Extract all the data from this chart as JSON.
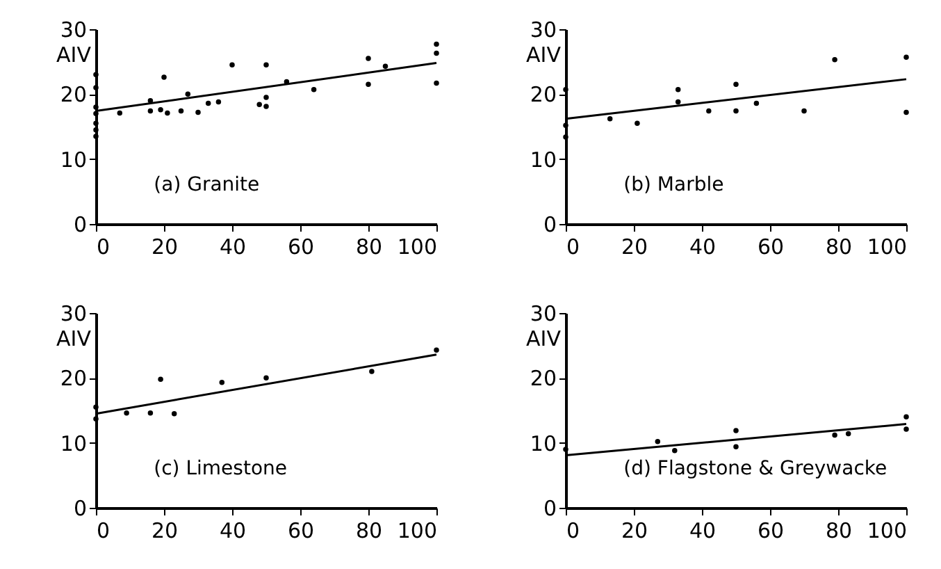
{
  "chart_data": [
    {
      "type": "scatter",
      "ylabel": "AIV",
      "annotations": [
        "(a) Granite"
      ],
      "xlim": [
        0,
        100
      ],
      "xticks": [
        0,
        20,
        40,
        60,
        80,
        100
      ],
      "ylim": [
        0,
        30
      ],
      "yticks": [
        0,
        10,
        20,
        30
      ],
      "line_style": "solid",
      "series": [
        {
          "type": "scatter",
          "marker": "circle",
          "color": "#000000",
          "x": [
            0,
            0,
            0,
            0,
            0,
            0,
            0,
            7,
            16,
            16,
            20,
            19,
            21,
            25,
            27,
            30,
            33,
            36,
            40,
            48,
            50,
            50,
            50,
            56,
            64,
            80,
            80,
            85,
            100,
            100,
            100
          ],
          "values": [
            23,
            21,
            18,
            17,
            15.5,
            14.5,
            13.5,
            17.1,
            19,
            17.4,
            22.6,
            17.6,
            17.1,
            17.4,
            20,
            17.2,
            18.6,
            18.8,
            24.5,
            18.4,
            19.5,
            18.1,
            24.5,
            21.9,
            20.7,
            25.5,
            21.5,
            24.3,
            26.3,
            27.7,
            21.7
          ]
        },
        {
          "type": "line",
          "marker": "none",
          "color": "#000000",
          "x": [
            0,
            100
          ],
          "values": [
            17.4,
            24.8
          ]
        }
      ]
    },
    {
      "type": "scatter",
      "ylabel": "AIV",
      "annotations": [
        "(b) Marble"
      ],
      "xlim": [
        0,
        100
      ],
      "xticks": [
        0,
        20,
        40,
        60,
        80,
        100
      ],
      "ylim": [
        0,
        30
      ],
      "yticks": [
        0,
        10,
        20,
        30
      ],
      "line_style": "solid",
      "series": [
        {
          "type": "scatter",
          "marker": "circle",
          "color": "#000000",
          "x": [
            0,
            0,
            0,
            13,
            21,
            33,
            33,
            42,
            50,
            50,
            56,
            70,
            79,
            100,
            100
          ],
          "values": [
            20.7,
            15.2,
            13.4,
            16.2,
            15.5,
            20.7,
            18.8,
            17.4,
            21.5,
            17.4,
            18.6,
            17.4,
            25.3,
            25.7,
            17.2
          ]
        },
        {
          "type": "line",
          "marker": "none",
          "color": "#000000",
          "x": [
            0,
            100
          ],
          "values": [
            16.2,
            22.3
          ]
        }
      ]
    },
    {
      "type": "scatter",
      "ylabel": "AIV",
      "annotations": [
        "(c) Limestone"
      ],
      "xlim": [
        0,
        100
      ],
      "xticks": [
        0,
        20,
        40,
        60,
        80,
        100
      ],
      "ylim": [
        0,
        30
      ],
      "yticks": [
        0,
        10,
        20,
        30
      ],
      "line_style": "solid",
      "series": [
        {
          "type": "scatter",
          "marker": "circle",
          "color": "#000000",
          "x": [
            0,
            0,
            9,
            16,
            19,
            23,
            37,
            50,
            81,
            100
          ],
          "values": [
            15.5,
            13.7,
            14.6,
            14.6,
            19.8,
            14.5,
            19.3,
            20,
            21,
            24.3
          ]
        },
        {
          "type": "line",
          "marker": "none",
          "color": "#000000",
          "x": [
            0,
            100
          ],
          "values": [
            14.5,
            23.6
          ]
        }
      ]
    },
    {
      "type": "scatter",
      "ylabel": "AIV",
      "annotations": [
        "(d) Flagstone & Greywacke"
      ],
      "xlim": [
        0,
        100
      ],
      "xticks": [
        0,
        20,
        40,
        60,
        80,
        100
      ],
      "ylim": [
        0,
        30
      ],
      "yticks": [
        0,
        10,
        20,
        30
      ],
      "line_style": "solid",
      "series": [
        {
          "type": "scatter",
          "marker": "circle",
          "color": "#000000",
          "x": [
            0,
            27,
            32,
            50,
            50,
            79,
            83,
            100,
            100
          ],
          "values": [
            9,
            10.2,
            8.8,
            11.9,
            9.4,
            11.2,
            11.4,
            14,
            12.1
          ]
        },
        {
          "type": "line",
          "marker": "none",
          "color": "#000000",
          "x": [
            0,
            100
          ],
          "values": [
            8.1,
            12.9
          ]
        }
      ]
    }
  ]
}
